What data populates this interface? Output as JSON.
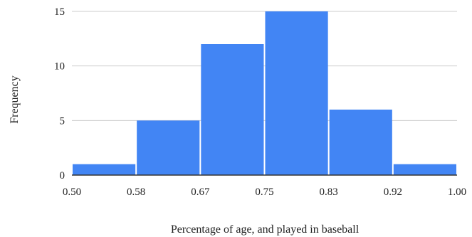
{
  "chart_data": {
    "type": "bar",
    "subtype": "histogram",
    "title": "",
    "xlabel": "Percentage of age, and played in baseball",
    "ylabel": "Frequency",
    "bin_edges": [
      0.5,
      0.58,
      0.67,
      0.75,
      0.83,
      0.92,
      1.0
    ],
    "x_tick_labels": [
      "0.50",
      "0.58",
      "0.67",
      "0.75",
      "0.83",
      "0.92",
      "1.00"
    ],
    "values": [
      1,
      5,
      12,
      15,
      6,
      1
    ],
    "y_ticks": [
      0,
      5,
      10,
      15
    ],
    "y_tick_labels": [
      "0",
      "5",
      "10",
      "15"
    ],
    "ylim": [
      0,
      15
    ],
    "grid": "horizontal",
    "legend": "none",
    "bar_color": "#4285f4",
    "grid_color": "#cccccc",
    "axis_color": "#333333"
  }
}
